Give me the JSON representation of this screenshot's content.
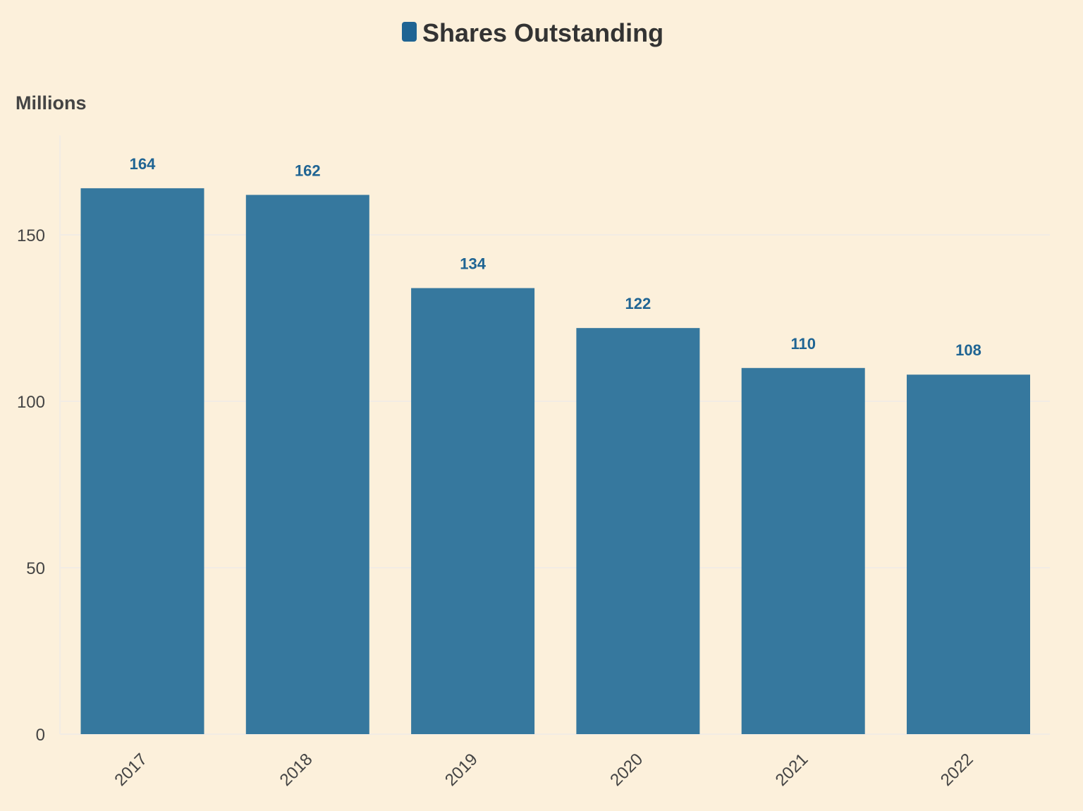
{
  "chart_data": {
    "type": "bar",
    "categories": [
      "2017",
      "2018",
      "2019",
      "2020",
      "2021",
      "2022"
    ],
    "series": [
      {
        "name": "Shares Outstanding",
        "values": [
          164,
          162,
          134,
          122,
          110,
          108
        ]
      }
    ],
    "ylabel": "Millions",
    "ylim": [
      0,
      180
    ],
    "yticks": [
      0,
      50,
      100,
      150
    ],
    "grid": true,
    "legend_placement": "top-center",
    "colors": {
      "bar": "#36789e",
      "legend_swatch": "#1f6493",
      "data_label": "#1f6493",
      "grid": "#f2ece4",
      "background": "#fcf0db"
    }
  }
}
